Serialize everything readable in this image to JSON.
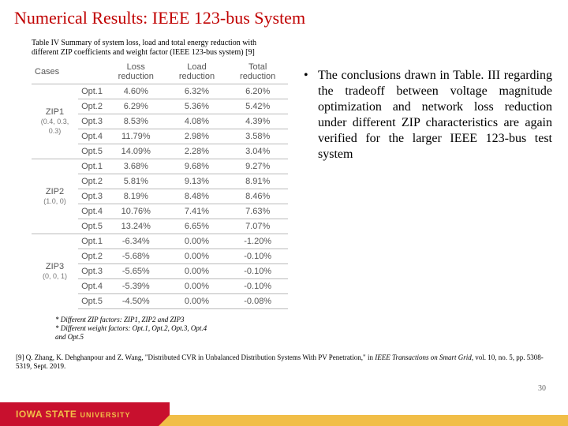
{
  "title": "Numerical Results: IEEE 123-bus System",
  "caption": "Table IV Summary of system loss, load and total energy reduction with different ZIP coefficients and weight factor (IEEE 123-bus system) [9]",
  "table": {
    "headers": [
      "Cases",
      "",
      "Loss reduction",
      "Load reduction",
      "Total reduction"
    ],
    "groups": [
      {
        "label": "ZIP1",
        "sub": "(0.4, 0.3, 0.3)",
        "rows": [
          [
            "Opt.1",
            "4.60%",
            "6.32%",
            "6.20%"
          ],
          [
            "Opt.2",
            "6.29%",
            "5.36%",
            "5.42%"
          ],
          [
            "Opt.3",
            "8.53%",
            "4.08%",
            "4.39%"
          ],
          [
            "Opt.4",
            "11.79%",
            "2.98%",
            "3.58%"
          ],
          [
            "Opt.5",
            "14.09%",
            "2.28%",
            "3.04%"
          ]
        ]
      },
      {
        "label": "ZIP2",
        "sub": "(1.0, 0)",
        "rows": [
          [
            "Opt.1",
            "3.68%",
            "9.68%",
            "9.27%"
          ],
          [
            "Opt.2",
            "5.81%",
            "9.13%",
            "8.91%"
          ],
          [
            "Opt.3",
            "8.19%",
            "8.48%",
            "8.46%"
          ],
          [
            "Opt.4",
            "10.76%",
            "7.41%",
            "7.63%"
          ],
          [
            "Opt.5",
            "13.24%",
            "6.65%",
            "7.07%"
          ]
        ]
      },
      {
        "label": "ZIP3",
        "sub": "(0, 0, 1)",
        "rows": [
          [
            "Opt.1",
            "-6.34%",
            "0.00%",
            "-1.20%"
          ],
          [
            "Opt.2",
            "-5.68%",
            "0.00%",
            "-0.10%"
          ],
          [
            "Opt.3",
            "-5.65%",
            "0.00%",
            "-0.10%"
          ],
          [
            "Opt.4",
            "-5.39%",
            "0.00%",
            "-0.10%"
          ],
          [
            "Opt.5",
            "-4.50%",
            "0.00%",
            "-0.08%"
          ]
        ]
      }
    ]
  },
  "conclusion": "The conclusions drawn in Table. III regarding the tradeoff between voltage magnitude optimization and network loss reduction under different ZIP characteristics are again verified for the larger IEEE 123-bus test system",
  "footnote1": "* Different ZIP factors: ZIP1, ZIP2 and ZIP3",
  "footnote2": "* Different weight factors: Opt.1, Opt.2, Opt.3, Opt.4 and Opt.5",
  "citation_pre": "[9] Q. Zhang, K. Dehghanpour and Z. Wang, \"Distributed CVR in Unbalanced Distribution Systems With PV Penetration,\" in ",
  "citation_ital": "IEEE Transactions on Smart Grid",
  "citation_post": ", vol. 10, no. 5, pp. 5308-5319, Sept. 2019.",
  "page": "30",
  "logo_main": "IOWA STATE",
  "logo_sub": "UNIVERSITY"
}
